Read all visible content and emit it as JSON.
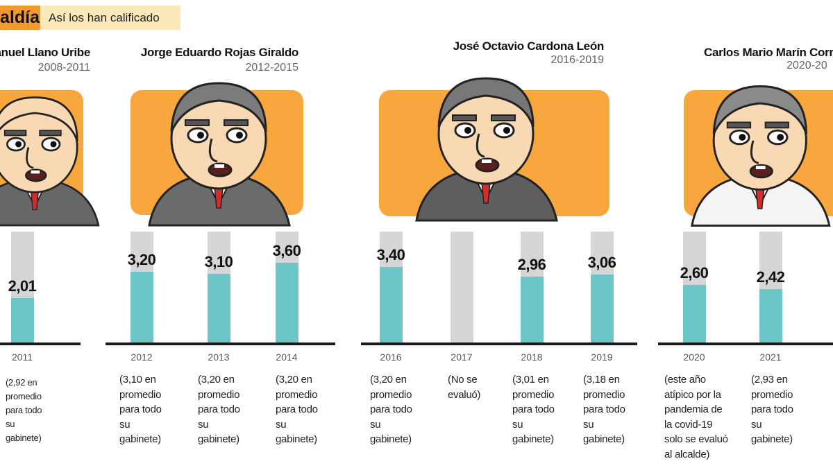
{
  "header": {
    "tag": "aldía",
    "subtitle": "Así los han calificado"
  },
  "colors": {
    "orange_panel": "#F7A73E",
    "header_orange": "#F39A2E",
    "header_beige": "#FBE9B8",
    "bar_value": "#6CC6C7",
    "bar_background": "#D6D6D6"
  },
  "mayors": [
    {
      "name": "anuel Llano Uribe",
      "period": "2008-2011"
    },
    {
      "name": "Jorge Eduardo Rojas Giraldo",
      "period": "2012-2015"
    },
    {
      "name": "José Octavio Cardona León",
      "period": "2016-2019"
    },
    {
      "name": "Carlos Mario Marín Corr",
      "period": "2020-20"
    }
  ],
  "chart_data": {
    "type": "bar",
    "ylim": [
      0,
      5
    ],
    "categories": [
      "2011",
      "2012",
      "2013",
      "2014",
      "2016",
      "2017",
      "2018",
      "2019",
      "2020",
      "2021"
    ],
    "values": [
      2.01,
      3.2,
      3.1,
      3.6,
      3.4,
      null,
      2.96,
      3.06,
      2.6,
      2.42
    ],
    "value_labels": [
      "2,01",
      "3,20",
      "3,10",
      "3,60",
      "3,40",
      "",
      "2,96",
      "3,06",
      "2,60",
      "2,42"
    ],
    "notes": [
      "(2,92 en promedio para todo su gabinete)",
      "(3,10 en promedio para todo su gabinete)",
      "(3,20 en promedio para todo su gabinete)",
      "(3,20 en promedio para todo su gabinete)",
      "(3,20 en promedio para todo su gabinete)",
      "(No se evaluó)",
      "(3,01 en promedio para todo su gabinete)",
      "(3,18 en promedio para todo su gabinete)",
      "(este año atípico por la pandemia de la covid-19 solo se evaluó al alcalde)",
      "(2,93 en promedio para todo su gabinete)"
    ],
    "note_lines": [
      "(2,92 en\npromedio\npara todo\nsu\ngabinete)",
      "(3,10 en\npromedio\npara todo\nsu\ngabinete)",
      "(3,20 en\npromedio\npara todo\nsu\ngabinete)",
      "(3,20 en\npromedio\npara todo\nsu\ngabinete)",
      "(3,20 en\npromedio\npara todo\nsu\ngabinete)",
      "(No se\nevaluó)",
      "(3,01 en\npromedio\npara todo\nsu\ngabinete)",
      "(3,18 en\npromedio\npara todo\nsu\ngabinete)",
      "(este año\natípico por la\npandemia de\nla covid-19\nsolo se evaluó\nal alcalde)",
      "(2,93 en\npromedio\npara todo\nsu\ngabinete)"
    ]
  }
}
